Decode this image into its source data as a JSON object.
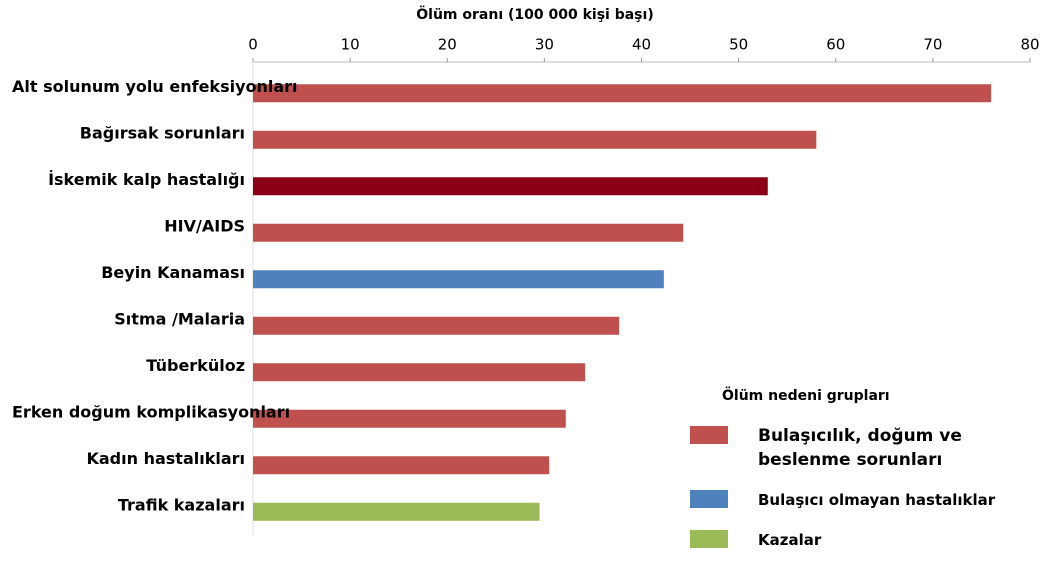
{
  "chart_data": {
    "type": "barh",
    "title": "Ölüm oranı (100 000 kişi başı)",
    "categories": [
      "Alt solunum yolu enfeksiyonları",
      "Bağırsak sorunları",
      "İskemik kalp hastalığı",
      "HIV/AIDS",
      "Beyin Kanaması",
      "Sıtma /Malaria",
      "Tüberküloz",
      "Erken doğum komplikasyonları",
      "Kadın hastalıkları",
      "Trafik kazaları"
    ],
    "values": [
      76,
      58,
      53,
      44.3,
      42.3,
      37.7,
      34.2,
      32.2,
      30.5,
      29.5
    ],
    "colors": [
      "#c0504d",
      "#c0504d",
      "#8b0015",
      "#c0504d",
      "#4f81bd",
      "#c0504d",
      "#c0504d",
      "#c0504d",
      "#c0504d",
      "#9bbb59"
    ],
    "xlim": [
      0,
      80
    ],
    "xticks": [
      0,
      10,
      20,
      30,
      40,
      50,
      60,
      70,
      80
    ],
    "legend": {
      "title": "Ölüm nedeni grupları",
      "items": [
        {
          "name": "Bulaşıcılık, doğum ve beslenme sorunları",
          "color": "#c0504d"
        },
        {
          "name": "Bulaşıcı olmayan hastalıklar",
          "color": "#4f81bd"
        },
        {
          "name": "Kazalar",
          "color": "#9bbb59"
        }
      ]
    }
  }
}
